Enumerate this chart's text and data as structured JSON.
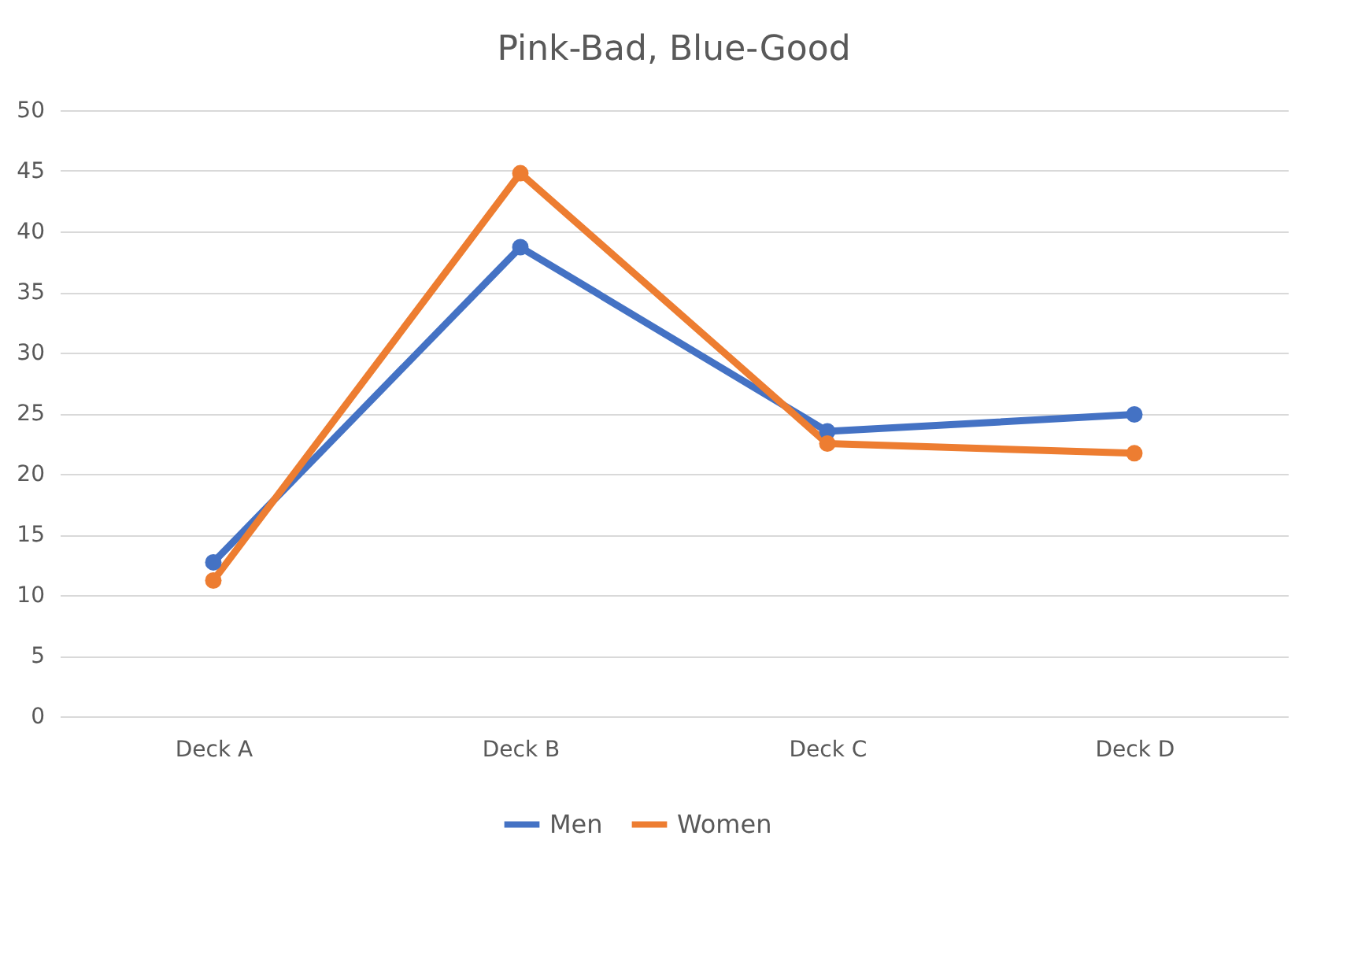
{
  "chart_data": {
    "type": "line",
    "title": "Pink-Bad, Blue-Good",
    "categories": [
      "Deck A",
      "Deck B",
      "Deck C",
      "Deck D"
    ],
    "series": [
      {
        "name": "Men",
        "color": "#4472c4",
        "values": [
          12.7,
          38.7,
          23.5,
          24.9
        ]
      },
      {
        "name": "Women",
        "color": "#ed7d31",
        "values": [
          11.2,
          44.8,
          22.5,
          21.7
        ]
      }
    ],
    "ylim": [
      0,
      50
    ],
    "yticks": [
      0,
      5,
      10,
      15,
      20,
      25,
      30,
      35,
      40,
      45,
      50
    ],
    "grid": "y",
    "legend": "bottom",
    "marker": "circle",
    "line_style": "solid"
  }
}
